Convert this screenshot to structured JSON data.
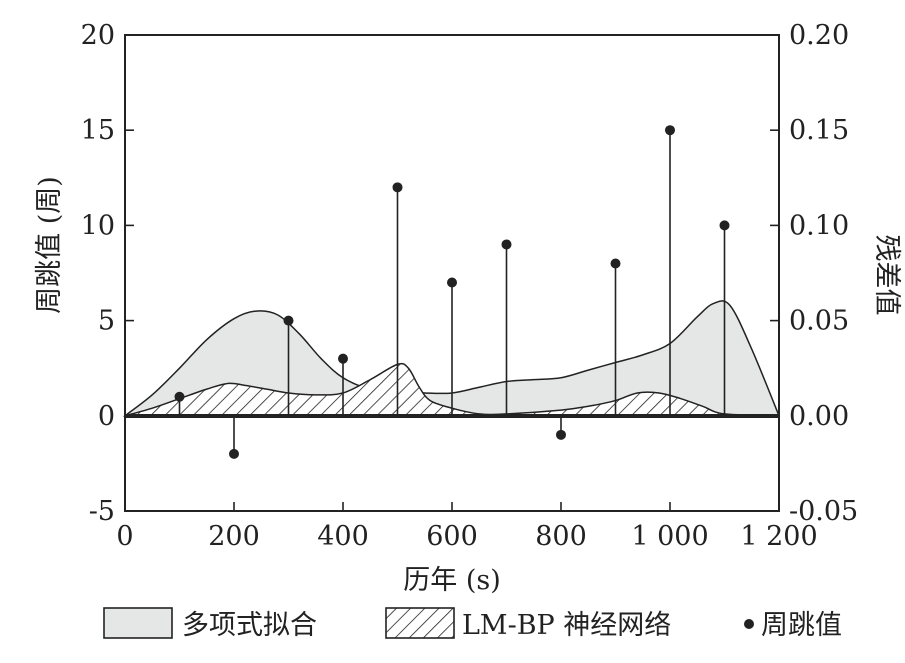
{
  "chart_data": {
    "type": "area",
    "xlabel": "历年 (s)",
    "ylabel_left": "周跳值 (周)",
    "ylabel_right": "残差值",
    "xlim": [
      0,
      1200
    ],
    "ylim_left": [
      -5,
      20
    ],
    "ylim_right": [
      -0.05,
      0.2
    ],
    "x_ticks": [
      0,
      200,
      400,
      600,
      800,
      1000,
      1200
    ],
    "x_tick_labels": [
      "0",
      "200",
      "400",
      "600",
      "800",
      "1 000",
      "1 200"
    ],
    "y_left_ticks": [
      -5,
      0,
      5,
      10,
      15,
      20
    ],
    "y_left_tick_labels": [
      "-5",
      "0",
      "5",
      "10",
      "15",
      "20"
    ],
    "y_right_ticks": [
      -0.05,
      0,
      0.05,
      0.1,
      0.15,
      0.2
    ],
    "y_right_tick_labels": [
      "-0.05",
      "0.00",
      "0.05",
      "0.10",
      "0.15",
      "0.20"
    ],
    "series": [
      {
        "name": "多项式拟合",
        "style": "filled-gray",
        "axis": "right",
        "x": [
          0,
          50,
          100,
          150,
          200,
          240,
          280,
          320,
          360,
          400,
          450,
          500,
          550,
          600,
          650,
          700,
          750,
          800,
          850,
          900,
          950,
          1000,
          1050,
          1080,
          1110,
          1150,
          1200
        ],
        "y": [
          0.0,
          0.011,
          0.025,
          0.04,
          0.051,
          0.055,
          0.053,
          0.043,
          0.03,
          0.02,
          0.014,
          0.013,
          0.012,
          0.012,
          0.015,
          0.018,
          0.019,
          0.02,
          0.024,
          0.028,
          0.032,
          0.038,
          0.052,
          0.059,
          0.058,
          0.035,
          0.0
        ]
      },
      {
        "name": "LM-BP 神经网络",
        "style": "hatched",
        "axis": "right",
        "x": [
          0,
          50,
          100,
          150,
          190,
          220,
          260,
          300,
          350,
          400,
          450,
          500,
          520,
          540,
          560,
          600,
          650,
          700,
          800,
          850,
          900,
          940,
          980,
          1020,
          1060,
          1100,
          1200
        ],
        "y": [
          0.0,
          0.004,
          0.009,
          0.014,
          0.017,
          0.016,
          0.014,
          0.012,
          0.011,
          0.012,
          0.019,
          0.027,
          0.025,
          0.015,
          0.008,
          0.004,
          0.001,
          0.001,
          0.003,
          0.005,
          0.008,
          0.012,
          0.012,
          0.009,
          0.005,
          0.001,
          0.0
        ]
      },
      {
        "name": "周跳值",
        "style": "stem",
        "axis": "left",
        "x": [
          100,
          200,
          300,
          400,
          500,
          600,
          700,
          800,
          900,
          1000,
          1100
        ],
        "y": [
          1,
          -2,
          5,
          3,
          12,
          7,
          9,
          -1,
          8,
          15,
          10
        ]
      }
    ],
    "legend": [
      {
        "label": "多项式拟合",
        "symbol": "filled-gray"
      },
      {
        "label": "LM-BP 神经网络",
        "symbol": "hatched"
      },
      {
        "label": "周跳值",
        "symbol": "dot"
      }
    ],
    "legend_placement": "bottom",
    "grid": false,
    "colors": {
      "fill_gray": "#e5e7e6",
      "line": "#222222",
      "stem_line": "#ffffff"
    }
  }
}
